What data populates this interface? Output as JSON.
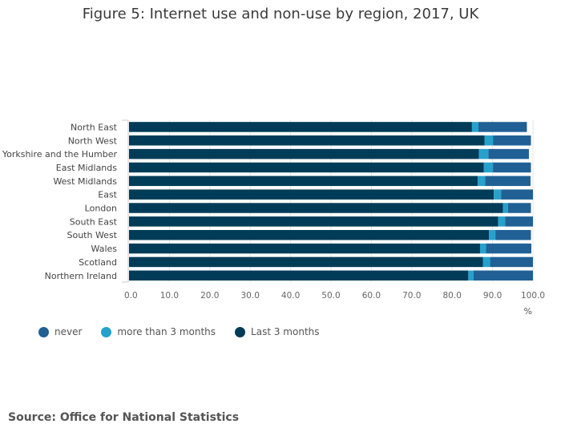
{
  "chart_data": {
    "type": "bar",
    "orientation": "horizontal",
    "stacked": true,
    "title": "Figure 5: Internet use and non-use by region, 2017, UK",
    "xlabel": "%",
    "ylabel": "",
    "xlim": [
      0,
      100
    ],
    "x_ticks": [
      "0.0",
      "10.0",
      "20.0",
      "30.0",
      "40.0",
      "50.0",
      "60.0",
      "70.0",
      "80.0",
      "90.0",
      "100.0"
    ],
    "grid": true,
    "legend_position": "bottom-left",
    "categories": [
      "North East",
      "North West",
      "Yorkshire and the Humber",
      "East Midlands",
      "West Midlands",
      "East",
      "London",
      "South East",
      "South West",
      "Wales",
      "Scotland",
      "Northern Ireland"
    ],
    "series": [
      {
        "name": "Last 3 months",
        "color": "#003c57",
        "values": [
          84.9,
          88.0,
          86.6,
          87.8,
          86.3,
          90.3,
          92.6,
          91.4,
          89.1,
          86.9,
          87.6,
          84.0
        ]
      },
      {
        "name": "more than 3 months",
        "color": "#27a0cc",
        "values": [
          1.6,
          2.1,
          2.4,
          2.3,
          1.9,
          1.8,
          1.2,
          1.7,
          1.6,
          1.5,
          1.8,
          1.3
        ]
      },
      {
        "name": "never",
        "color": "#206095",
        "values": [
          12.0,
          9.4,
          10.0,
          9.4,
          11.2,
          7.9,
          5.7,
          6.9,
          8.8,
          11.2,
          10.6,
          14.7
        ]
      }
    ]
  },
  "legend": [
    {
      "label": "never",
      "color": "#206095"
    },
    {
      "label": "more than 3 months",
      "color": "#27a0cc"
    },
    {
      "label": "Last 3 months",
      "color": "#003c57"
    }
  ],
  "source": "Source: Office for National Statistics"
}
